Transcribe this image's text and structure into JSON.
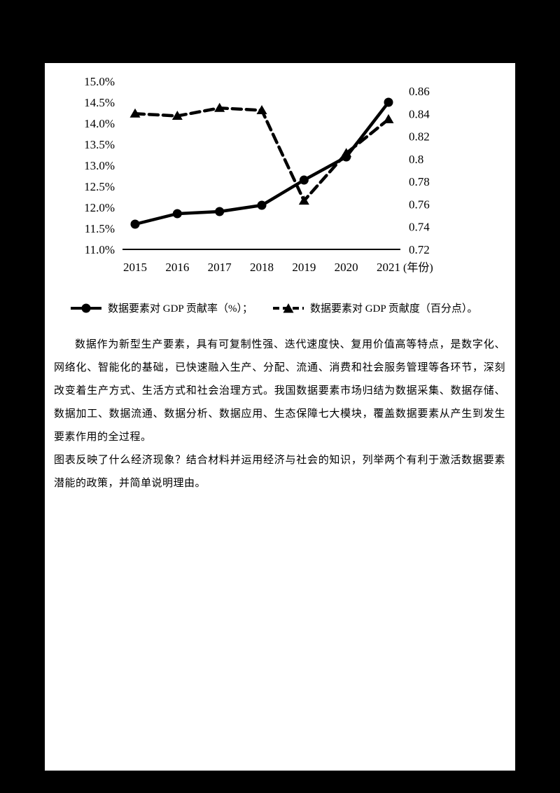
{
  "chart_data": {
    "type": "line",
    "title": "",
    "x": [
      "2015",
      "2016",
      "2017",
      "2018",
      "2019",
      "2020",
      "2021"
    ],
    "x_suffix": "(年份)",
    "left_axis": {
      "min": 11.0,
      "max": 15.0,
      "ticks": [
        "15.0%",
        "14.5%",
        "14.0%",
        "13.5%",
        "13.0%",
        "12.5%",
        "12.0%",
        "11.5%",
        "11.0%"
      ]
    },
    "right_axis": {
      "min": 0.72,
      "max": 0.86,
      "ticks": [
        "0.86",
        "0.84",
        "0.82",
        "0.8",
        "0.78",
        "0.76",
        "0.74",
        "0.72"
      ]
    },
    "grid": false,
    "legend_position": "bottom",
    "series": [
      {
        "name": "数据要素对GDP贡献率（%）",
        "axis": "left",
        "line": "solid",
        "marker": "circle",
        "values": [
          11.6,
          11.85,
          11.9,
          12.05,
          12.65,
          13.2,
          14.5
        ]
      },
      {
        "name": "数据要素对GDP贡献度（百分点）",
        "axis": "right",
        "line": "dashed",
        "marker": "triangle",
        "values": [
          0.84,
          0.838,
          0.845,
          0.843,
          0.763,
          0.805,
          0.835
        ]
      }
    ]
  },
  "legend": {
    "item1": "数据要素对 GDP 贡献率（%）；",
    "item2": "数据要素对 GDP 贡献度（百分点）。"
  },
  "paragraphs": {
    "p1": "数据作为新型生产要素，具有可复制性强、迭代速度快、复用价值高等特点，是数字化、网络化、智能化的基础，已快速融入生产、分配、流通、消费和社会服务管理等各环节，深刻改变着生产方式、生活方式和社会治理方式。我国数据要素市场归结为数据采集、数据存储、数据加工、数据流通、数据分析、数据应用、生态保障七大模块，覆盖数据要素从产生到发生要素作用的全过程。",
    "p2": "图表反映了什么经济现象？结合材料并运用经济与社会的知识，列举两个有利于激活数据要素潜能的政策，并简单说明理由。"
  },
  "colors": {
    "ink": "#000000",
    "paper": "#ffffff",
    "frame": "#000000"
  }
}
